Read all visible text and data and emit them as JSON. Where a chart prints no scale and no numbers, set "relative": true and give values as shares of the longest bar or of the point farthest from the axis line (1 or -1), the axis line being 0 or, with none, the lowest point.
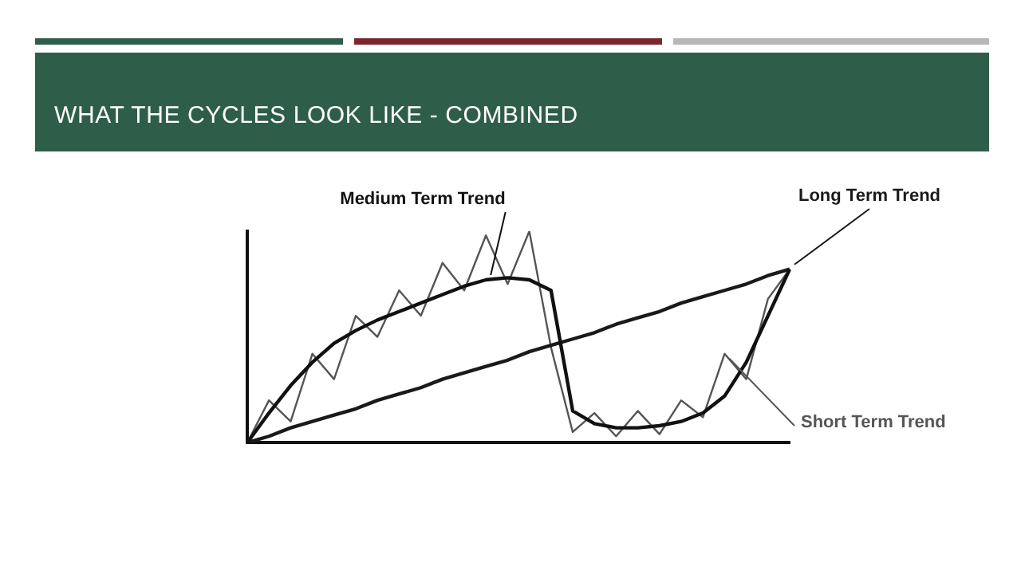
{
  "chart_data": {
    "type": "line",
    "title": "WHAT THE CYCLES LOOK LIKE - COMBINED",
    "relative": true,
    "grid": false,
    "legend": false,
    "marker": "none",
    "categories": [
      null,
      null,
      null,
      null,
      null,
      null,
      null,
      null,
      null,
      null,
      null,
      null,
      null,
      null,
      null,
      null,
      null,
      null,
      null,
      null,
      null,
      null,
      null,
      null,
      null,
      null
    ],
    "series": [
      {
        "name": "Medium Term Trend",
        "color": "#111111",
        "values": [
          0,
          0.14,
          0.27,
          0.38,
          0.47,
          0.53,
          0.58,
          0.62,
          0.66,
          0.7,
          0.74,
          0.77,
          0.78,
          0.77,
          0.72,
          0.15,
          0.09,
          0.07,
          0.07,
          0.08,
          0.1,
          0.14,
          0.22,
          0.38,
          0.6,
          0.82
        ]
      },
      {
        "name": "Long Term Trend",
        "color": "#1a1a1a",
        "values": [
          0,
          0.03,
          0.07,
          0.1,
          0.13,
          0.16,
          0.2,
          0.23,
          0.26,
          0.3,
          0.33,
          0.36,
          0.39,
          0.43,
          0.46,
          0.49,
          0.52,
          0.56,
          0.59,
          0.62,
          0.66,
          0.69,
          0.72,
          0.75,
          0.79,
          0.82
        ]
      },
      {
        "name": "Short Term Trend",
        "color": "#555555",
        "values": [
          0,
          0.2,
          0.1,
          0.42,
          0.3,
          0.6,
          0.5,
          0.72,
          0.6,
          0.85,
          0.72,
          0.98,
          0.75,
          1,
          0.45,
          0.05,
          0.14,
          0.03,
          0.15,
          0.04,
          0.2,
          0.12,
          0.42,
          0.3,
          0.68,
          0.82
        ]
      }
    ]
  }
}
